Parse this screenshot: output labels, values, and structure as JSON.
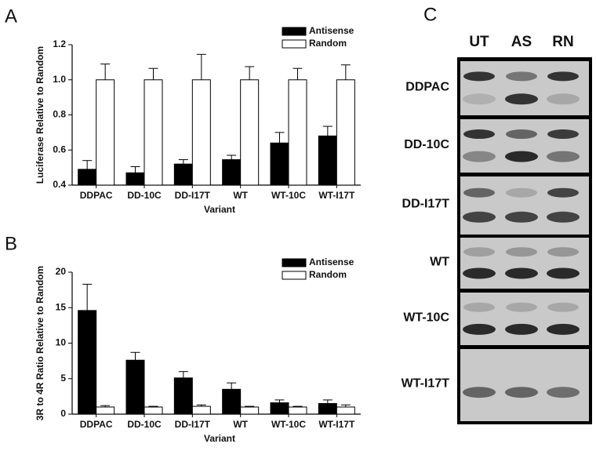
{
  "chart_data": [
    {
      "type": "bar",
      "panel_label": "A",
      "y_label": "Luciferase  Relative to Random",
      "x_label": "Variant",
      "categories": [
        "DDPAC",
        "DD-10C",
        "DD-I17T",
        "WT",
        "WT-10C",
        "WT-I17T"
      ],
      "series": [
        {
          "name": "Antisense",
          "color": "#000000",
          "values": [
            0.49,
            0.47,
            0.52,
            0.545,
            0.64,
            0.68
          ],
          "errors": [
            0.05,
            0.035,
            0.025,
            0.025,
            0.06,
            0.055
          ]
        },
        {
          "name": "Random",
          "color": "#ffffff",
          "values": [
            1.0,
            1.0,
            1.0,
            1.0,
            1.0,
            1.0
          ],
          "errors": [
            0.09,
            0.065,
            0.145,
            0.075,
            0.065,
            0.085
          ]
        }
      ],
      "ylim": [
        0.4,
        1.2
      ],
      "yticks": [
        0.4,
        0.6,
        0.8,
        {
          "value": 1.0,
          "label": "1.0"
        },
        1.2
      ],
      "legend": "upper right"
    },
    {
      "type": "bar",
      "panel_label": "B",
      "y_label": "3R to 4R Ratio Relative to  Random",
      "x_label": "Variant",
      "categories": [
        "DDPAC",
        "DD-10C",
        "DD-I17T",
        "WT",
        "WT-10C",
        "WT-I17T"
      ],
      "series": [
        {
          "name": "Antisense",
          "color": "#000000",
          "values": [
            14.6,
            7.6,
            5.1,
            3.5,
            1.6,
            1.5
          ],
          "errors": [
            3.7,
            1.1,
            0.9,
            0.9,
            0.4,
            0.5
          ]
        },
        {
          "name": "Random",
          "color": "#ffffff",
          "values": [
            1.0,
            1.0,
            1.1,
            1.0,
            1.0,
            1.0
          ],
          "errors": [
            0.2,
            0.1,
            0.2,
            0.1,
            0.1,
            0.3
          ]
        }
      ],
      "ylim": [
        0,
        20
      ],
      "yticks": [
        0,
        5,
        10,
        15,
        20
      ],
      "legend": "upper right"
    }
  ],
  "gel": {
    "panel_label": "C",
    "lanes": [
      "UT",
      "AS",
      "RN"
    ],
    "samples": [
      "DDPAC",
      "DD-10C",
      "DD-I17T",
      "WT",
      "WT-10C",
      "WT-I17T"
    ]
  }
}
